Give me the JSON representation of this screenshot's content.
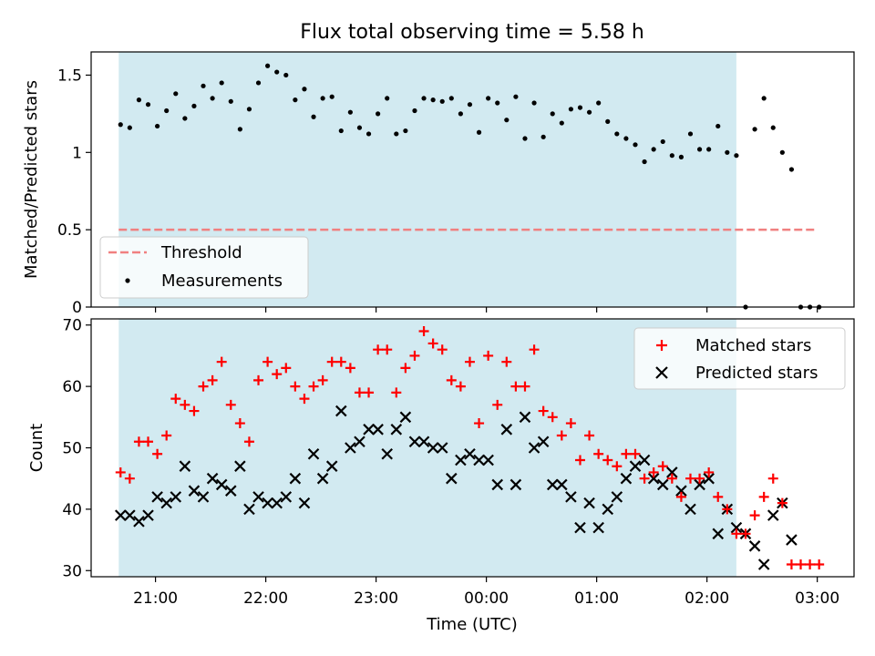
{
  "title": "Flux total observing time = 5.58 h",
  "colors": {
    "shade": "#add8e6",
    "threshold": "#f08080",
    "matched": "#ff0000",
    "predicted": "#000000",
    "measurements": "#000000"
  },
  "x_axis": {
    "label": "Time (UTC)",
    "range": [
      "20:25",
      "03:20"
    ],
    "ticks": [
      "21:00",
      "22:00",
      "23:00",
      "00:00",
      "01:00",
      "02:00",
      "03:00"
    ]
  },
  "chart_data": [
    {
      "type": "scatter",
      "ylabel": "Matched/Predicted stars",
      "ylim": [
        0.0,
        1.65
      ],
      "yticks": [
        0.0,
        0.5,
        1.0,
        1.5
      ],
      "shaded_interval": {
        "start": "20:40",
        "end": "02:16"
      },
      "legend": {
        "placement": "lower-left",
        "entries": [
          "Threshold",
          "Measurements"
        ]
      },
      "series": [
        {
          "name": "Threshold",
          "style": "dashed-line",
          "x": [
            "20:40",
            "03:00"
          ],
          "y": [
            0.5,
            0.5
          ]
        },
        {
          "name": "Measurements",
          "style": "dot",
          "x": [
            "20:41",
            "20:46",
            "20:51",
            "20:56",
            "21:01",
            "21:06",
            "21:11",
            "21:16",
            "21:21",
            "21:26",
            "21:31",
            "21:36",
            "21:41",
            "21:46",
            "21:51",
            "21:56",
            "22:01",
            "22:06",
            "22:11",
            "22:16",
            "22:21",
            "22:26",
            "22:31",
            "22:36",
            "22:41",
            "22:46",
            "22:51",
            "22:56",
            "23:01",
            "23:06",
            "23:11",
            "23:16",
            "23:21",
            "23:26",
            "23:31",
            "23:36",
            "23:41",
            "23:46",
            "23:51",
            "23:56",
            "00:01",
            "00:06",
            "00:11",
            "00:16",
            "00:21",
            "00:26",
            "00:31",
            "00:36",
            "00:41",
            "00:46",
            "00:51",
            "00:56",
            "01:01",
            "01:06",
            "01:11",
            "01:16",
            "01:21",
            "01:26",
            "01:31",
            "01:36",
            "01:41",
            "01:46",
            "01:51",
            "01:56",
            "02:01",
            "02:06",
            "02:11",
            "02:16",
            "02:21",
            "02:26",
            "02:31",
            "02:36",
            "02:41",
            "02:46",
            "02:51",
            "02:56",
            "03:01"
          ],
          "y": [
            1.18,
            1.16,
            1.34,
            1.31,
            1.17,
            1.27,
            1.38,
            1.22,
            1.3,
            1.43,
            1.35,
            1.45,
            1.33,
            1.15,
            1.28,
            1.45,
            1.56,
            1.52,
            1.5,
            1.34,
            1.41,
            1.23,
            1.35,
            1.36,
            1.14,
            1.26,
            1.16,
            1.12,
            1.25,
            1.35,
            1.12,
            1.14,
            1.27,
            1.35,
            1.34,
            1.33,
            1.35,
            1.25,
            1.31,
            1.13,
            1.35,
            1.32,
            1.21,
            1.36,
            1.09,
            1.32,
            1.1,
            1.25,
            1.19,
            1.28,
            1.29,
            1.26,
            1.32,
            1.2,
            1.12,
            1.09,
            1.05,
            0.94,
            1.02,
            1.07,
            0.98,
            0.97,
            1.12,
            1.02,
            1.02,
            1.17,
            1.0,
            0.98,
            0.0,
            1.15,
            1.35,
            1.16,
            1.0,
            0.89,
            0.0,
            0.0,
            0.0
          ]
        }
      ]
    },
    {
      "type": "scatter",
      "ylabel": "Count",
      "ylim": [
        29,
        71
      ],
      "yticks": [
        30,
        40,
        50,
        60,
        70
      ],
      "shaded_interval": {
        "start": "20:40",
        "end": "02:16"
      },
      "legend": {
        "placement": "top-right",
        "entries": [
          "Matched stars",
          "Predicted stars"
        ]
      },
      "x": [
        "20:41",
        "20:46",
        "20:51",
        "20:56",
        "21:01",
        "21:06",
        "21:11",
        "21:16",
        "21:21",
        "21:26",
        "21:31",
        "21:36",
        "21:41",
        "21:46",
        "21:51",
        "21:56",
        "22:01",
        "22:06",
        "22:11",
        "22:16",
        "22:21",
        "22:26",
        "22:31",
        "22:36",
        "22:41",
        "22:46",
        "22:51",
        "22:56",
        "23:01",
        "23:06",
        "23:11",
        "23:16",
        "23:21",
        "23:26",
        "23:31",
        "23:36",
        "23:41",
        "23:46",
        "23:51",
        "23:56",
        "00:01",
        "00:06",
        "00:11",
        "00:16",
        "00:21",
        "00:26",
        "00:31",
        "00:36",
        "00:41",
        "00:46",
        "00:51",
        "00:56",
        "01:01",
        "01:06",
        "01:11",
        "01:16",
        "01:21",
        "01:26",
        "01:31",
        "01:36",
        "01:41",
        "01:46",
        "01:51",
        "01:56",
        "02:01",
        "02:06",
        "02:11",
        "02:16",
        "02:21",
        "02:26",
        "02:31",
        "02:36",
        "02:41",
        "02:46",
        "02:51",
        "02:56",
        "03:01"
      ],
      "series": [
        {
          "name": "Matched stars",
          "marker": "+",
          "values": [
            46,
            45,
            51,
            51,
            49,
            52,
            58,
            57,
            56,
            60,
            61,
            64,
            57,
            54,
            51,
            61,
            64,
            62,
            63,
            60,
            58,
            60,
            61,
            64,
            64,
            63,
            59,
            59,
            66,
            66,
            59,
            63,
            65,
            69,
            67,
            66,
            61,
            60,
            64,
            54,
            65,
            57,
            64,
            60,
            60,
            66,
            56,
            55,
            52,
            54,
            48,
            52,
            49,
            48,
            47,
            49,
            49,
            45,
            46,
            47,
            45,
            42,
            45,
            45,
            46,
            42,
            40,
            36,
            36,
            39,
            42,
            45,
            41,
            31,
            31,
            31,
            31
          ]
        },
        {
          "name": "Predicted stars",
          "marker": "x",
          "values": [
            39,
            39,
            38,
            39,
            42,
            41,
            42,
            47,
            43,
            42,
            45,
            44,
            43,
            47,
            40,
            42,
            41,
            41,
            42,
            45,
            41,
            49,
            45,
            47,
            56,
            50,
            51,
            53,
            53,
            49,
            53,
            55,
            51,
            51,
            50,
            50,
            45,
            48,
            49,
            48,
            48,
            44,
            53,
            44,
            55,
            50,
            51,
            44,
            44,
            42,
            37,
            41,
            37,
            40,
            42,
            45,
            47,
            48,
            45,
            44,
            46,
            43,
            40,
            44,
            45,
            36,
            40,
            37,
            36,
            34,
            31,
            39,
            41,
            35,
            null,
            null,
            null
          ]
        }
      ]
    }
  ]
}
